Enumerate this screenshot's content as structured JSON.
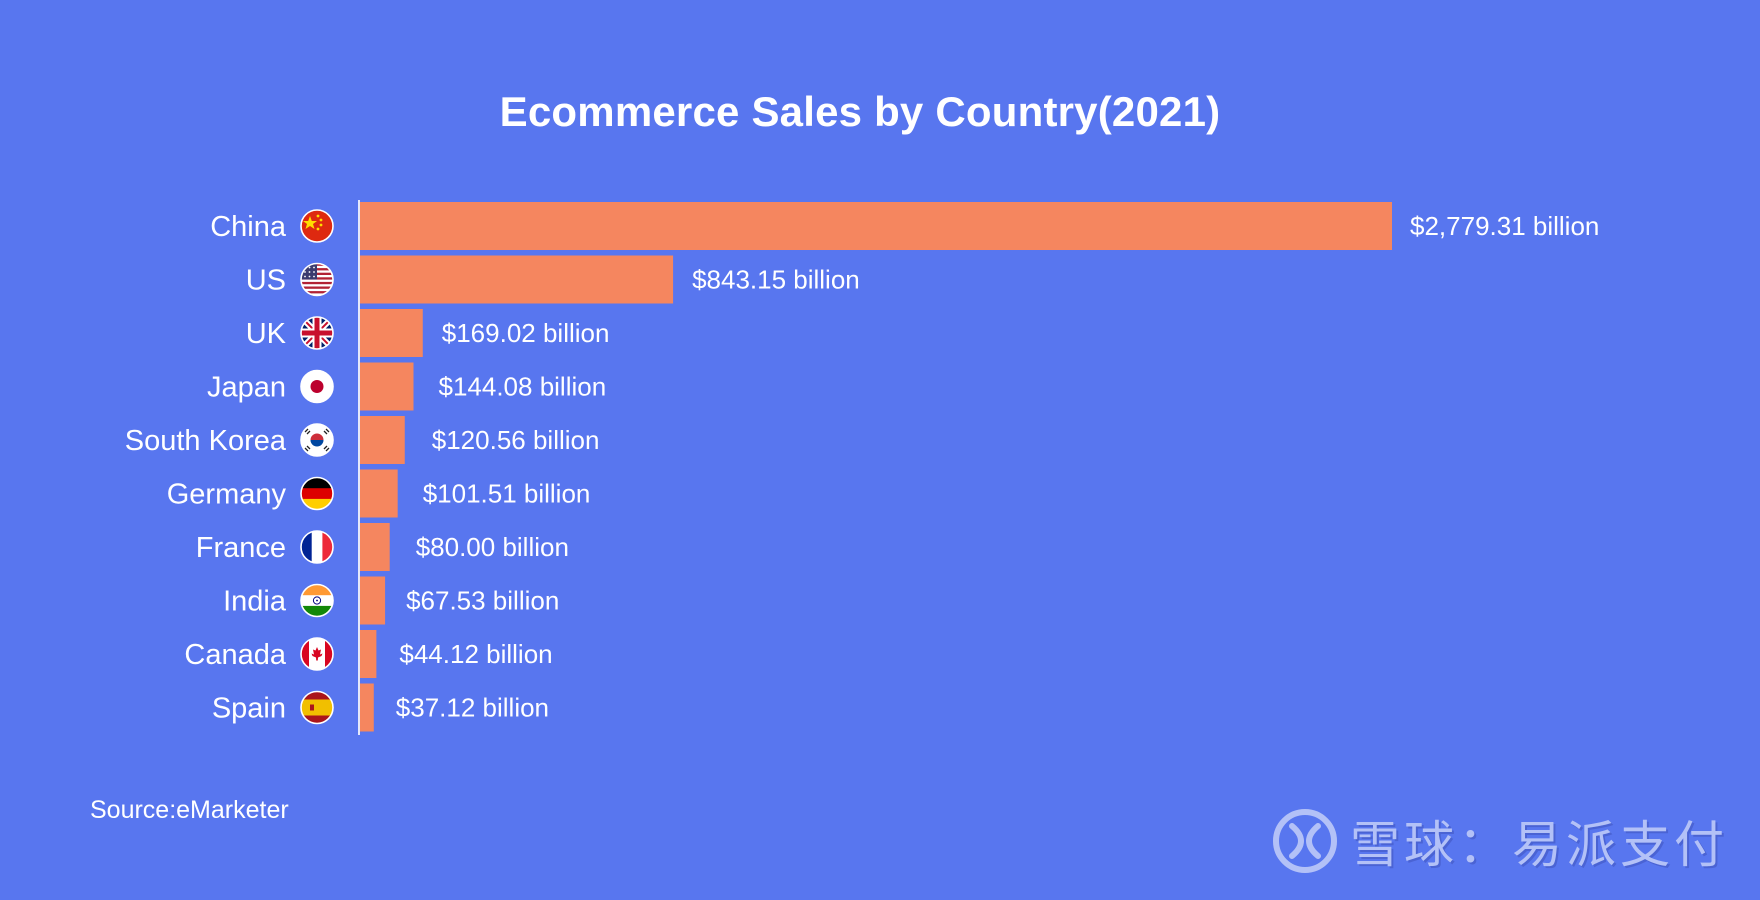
{
  "chart_data": {
    "type": "bar",
    "orientation": "horizontal",
    "title": "Ecommerce Sales by Country(2021)",
    "xlabel": "",
    "ylabel": "",
    "unit": "billion",
    "categories": [
      "China",
      "US",
      "UK",
      "Japan",
      "South Korea",
      "Germany",
      "France",
      "India",
      "Canada",
      "Spain"
    ],
    "values": [
      2779.31,
      843.15,
      169.02,
      144.08,
      120.56,
      101.51,
      80.0,
      67.53,
      44.12,
      37.12
    ],
    "data_labels": [
      "$2,779.31 billion",
      "$843.15 billion",
      "$169.02 billion",
      "$144.08 billion",
      "$120.56 billion",
      "$101.51 billion",
      "$80.00 billion",
      "$67.53 billion",
      "$44.12 billion",
      "$37.12 billion"
    ],
    "flag_icons": [
      "china-flag-icon",
      "us-flag-icon",
      "uk-flag-icon",
      "japan-flag-icon",
      "south-korea-flag-icon",
      "germany-flag-icon",
      "france-flag-icon",
      "india-flag-icon",
      "canada-flag-icon",
      "spain-flag-icon"
    ],
    "xlim": [
      0,
      2779.31
    ],
    "grid": false,
    "legend": "none",
    "colors": {
      "background": "#5876EF",
      "bar": "#F5865F",
      "text": "#FFFFFF",
      "axis": "#E4E8FB"
    }
  },
  "source": "Source:eMarketer",
  "watermark": {
    "text": "雪球：易派支付",
    "logo_icon": "xueqiu-logo-icon"
  }
}
